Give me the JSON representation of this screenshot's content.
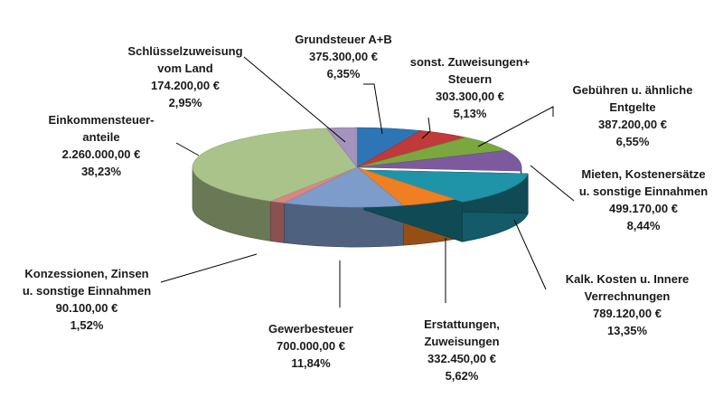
{
  "chart_data": {
    "type": "pie",
    "style": "3d-exploded-slice",
    "title": "",
    "slices": [
      {
        "name": "Grundsteuer A+B",
        "value": 375300.0,
        "value_label": "375.300,00 €",
        "percent_label": "6,35%",
        "color": "#2e75b6"
      },
      {
        "name": "sonst. Zuweisungen+ Steuern",
        "value": 303300.0,
        "value_label": "303.300,00 €",
        "percent_label": "5,13%",
        "color": "#c0393b"
      },
      {
        "name": "Gebühren u. ähnliche Entgelte",
        "value": 387200.0,
        "value_label": "387.200,00 €",
        "percent_label": "6,55%",
        "color": "#7aa83e"
      },
      {
        "name": "Mieten, Kostenersätze u. sonstige Einnahmen",
        "value": 499170.0,
        "value_label": "499.170,00 €",
        "percent_label": "8,44%",
        "color": "#7d5a9e"
      },
      {
        "name": "Kalk. Kosten u. Innere Verrechnungen",
        "value": 789120.0,
        "value_label": "789.120,00 €",
        "percent_label": "13,35%",
        "color": "#1f93a8"
      },
      {
        "name": "Erstattungen, Zuweisungen",
        "value": 332450.0,
        "value_label": "332.450,00 €",
        "percent_label": "5,62%",
        "color": "#f07f23"
      },
      {
        "name": "Gewerbesteuer",
        "value": 700000.0,
        "value_label": "700.000,00 €",
        "percent_label": "11,84%",
        "color": "#7e9ccb"
      },
      {
        "name": "Konzessionen, Zinsen u. sonstige Einnahmen",
        "value": 90100.0,
        "value_label": "90.100,00 €",
        "percent_label": "1,52%",
        "color": "#dd8583"
      },
      {
        "name": "Einkommensteuer-anteile",
        "value": 2260000.0,
        "value_label": "2.260.000,00 €",
        "percent_label": "38,23%",
        "color": "#a9c38a"
      },
      {
        "name": "Schlüsselzuweisung vom Land",
        "value": 174200.0,
        "value_label": "174.200,00 €",
        "percent_label": "2,95%",
        "color": "#a393bd"
      }
    ]
  },
  "labels": [
    {
      "lines": [
        "Grundsteuer A+B",
        "375.300,00 €",
        "6,35%"
      ]
    },
    {
      "lines": [
        "sonst. Zuweisungen+",
        "Steuern",
        "303.300,00 €",
        "5,13%"
      ]
    },
    {
      "lines": [
        "Gebühren u. ähnliche",
        "Entgelte",
        "387.200,00 €",
        "6,55%"
      ]
    },
    {
      "lines": [
        "Mieten, Kostenersätze",
        "u. sonstige Einnahmen",
        "499.170,00 €",
        "8,44%"
      ]
    },
    {
      "lines": [
        "Kalk. Kosten u. Innere",
        "Verrechnungen",
        "789.120,00 €",
        "13,35%"
      ]
    },
    {
      "lines": [
        "Erstattungen,",
        "Zuweisungen",
        "332.450,00 €",
        "5,62%"
      ]
    },
    {
      "lines": [
        "Gewerbesteuer",
        "700.000,00 €",
        "11,84%"
      ]
    },
    {
      "lines": [
        "Konzessionen, Zinsen",
        "u. sonstige Einnahmen",
        "90.100,00 €",
        "1,52%"
      ]
    },
    {
      "lines": [
        "Einkommensteuer-",
        "anteile",
        "2.260.000,00 €",
        "38,23%"
      ]
    },
    {
      "lines": [
        "Schlüsselzuweisung",
        "vom Land",
        "174.200,00 €",
        "2,95%"
      ]
    }
  ]
}
